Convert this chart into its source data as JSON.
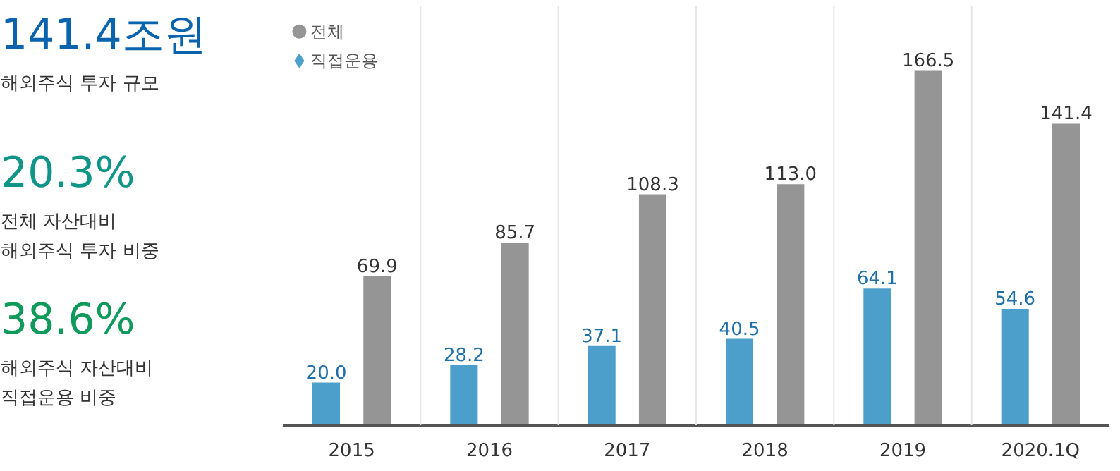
{
  "chart_data": {
    "type": "bar",
    "categories": [
      "2015",
      "2016",
      "2017",
      "2018",
      "2019",
      "2020.1Q"
    ],
    "series": [
      {
        "name": "직접운용",
        "color": "#4d9fcb",
        "marker": "diamond",
        "values": [
          20.0,
          28.2,
          37.1,
          40.5,
          64.1,
          54.6
        ],
        "value_labels": [
          "20.0",
          "28.2",
          "37.1",
          "40.5",
          "64.1",
          "54.6"
        ]
      },
      {
        "name": "전체",
        "color": "#959595",
        "marker": "circle",
        "values": [
          69.9,
          85.7,
          108.3,
          113.0,
          166.5,
          141.4
        ],
        "value_labels": [
          "69.9",
          "85.7",
          "108.3",
          "113.0",
          "166.5",
          "141.4"
        ]
      }
    ],
    "legend": "top left",
    "grid": false,
    "annotations": [
      "141.4조원",
      "해외주식 투자 규모",
      "20.3%",
      "전체 자산대비\n해외주식 투자 비중",
      "38.6%",
      "해외주식 자산대비\n직접운용 비중"
    ]
  }
}
